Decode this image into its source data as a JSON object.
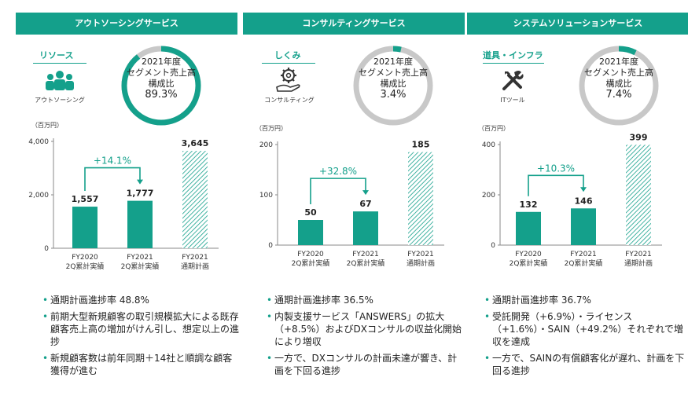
{
  "colors": {
    "accent": "#14a08b",
    "ring_track": "#c8c8c8",
    "bar": "#14a08b"
  },
  "panels": [
    {
      "header": "アウトソーシングサービス",
      "category": "リソース",
      "category_sub": "アウトソーシング",
      "icon": "people-icon",
      "ring": {
        "line1": "2021年度",
        "line2": "セグメント売上高",
        "line3": "構成比",
        "pct": "89.3%",
        "share": 0.893
      },
      "bullets": [
        "通期計画進捗率 48.8%",
        "前期大型新規顧客の取引規模拡大による既存顧客売上高の増加がけん引し、想定以上の進捗",
        "新規顧客数は前年同期＋14社と順調な顧客獲得が進む"
      ]
    },
    {
      "header": "コンサルティングサービス",
      "category": "しくみ",
      "category_sub": "コンサルティング",
      "icon": "gear-hand-icon",
      "ring": {
        "line1": "2021年度",
        "line2": "セグメント売上高",
        "line3": "構成比",
        "pct": "3.4%",
        "share": 0.034
      },
      "bullets": [
        "通期計画進捗率 36.5%",
        "内製支援サービス「ANSWERS」の拡大（+8.5%）およびDXコンサルの収益化開始により増収",
        "一方で、DXコンサルの計画未達が響き、計画を下回る進捗"
      ]
    },
    {
      "header": "システムソリューションサービス",
      "category": "道具・インフラ",
      "category_sub": "ITツール",
      "icon": "tools-icon",
      "ring": {
        "line1": "2021年度",
        "line2": "セグメント売上高",
        "line3": "構成比",
        "pct": "7.4%",
        "share": 0.074
      },
      "bullets": [
        "通期計画進捗率 36.7%",
        "受託開発（+6.9%）・ライセンス（+1.6%）・SAIN（+49.2%）それぞれで増収を達成",
        "一方で、SAINの有償顧客化が遅れ、計画を下回る進捗"
      ]
    }
  ],
  "chart_data": [
    {
      "type": "bar",
      "unit": "（百万円）",
      "categories": [
        "FY2020\n2Q累計実績",
        "FY2021\n2Q累計実績",
        "FY2021\n通期計画"
      ],
      "values": [
        1557,
        1777,
        3645
      ],
      "value_labels": [
        "1,557",
        "1,777",
        "3,645"
      ],
      "plan_hatched": [
        false,
        false,
        true
      ],
      "yticks": [
        0,
        2000,
        4000
      ],
      "ytick_labels": [
        "0",
        "2,000",
        "4,000"
      ],
      "ylim": [
        0,
        4000
      ],
      "annotation": "+14.1%"
    },
    {
      "type": "bar",
      "unit": "（百万円）",
      "categories": [
        "FY2020\n2Q累計実績",
        "FY2021\n2Q累計実績",
        "FY2021\n通期計画"
      ],
      "values": [
        50,
        67,
        185
      ],
      "value_labels": [
        "50",
        "67",
        "185"
      ],
      "plan_hatched": [
        false,
        false,
        true
      ],
      "yticks": [
        0,
        100,
        200
      ],
      "ytick_labels": [
        "0",
        "100",
        "200"
      ],
      "ylim": [
        0,
        200
      ],
      "annotation": "+32.8%"
    },
    {
      "type": "bar",
      "unit": "（百万円）",
      "categories": [
        "FY2020\n2Q累計実績",
        "FY2021\n2Q累計実績",
        "FY2021\n通期計画"
      ],
      "values": [
        132,
        146,
        399
      ],
      "value_labels": [
        "132",
        "146",
        "399"
      ],
      "plan_hatched": [
        false,
        false,
        true
      ],
      "yticks": [
        0,
        200,
        400
      ],
      "ytick_labels": [
        "0",
        "200",
        "400"
      ],
      "ylim": [
        0,
        400
      ],
      "annotation": "+10.3%"
    }
  ]
}
